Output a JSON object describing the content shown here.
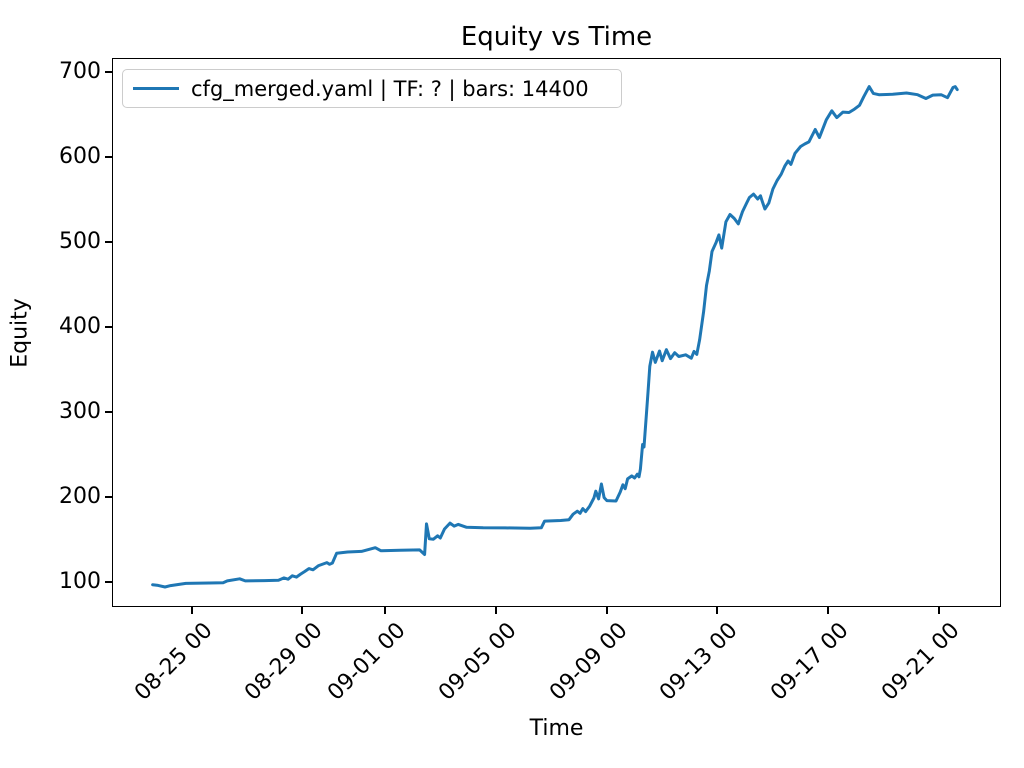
{
  "title": "Equity vs Time",
  "axes": {
    "xlabel": "Time",
    "ylabel": "Equity"
  },
  "legend": {
    "label": "cfg_merged.yaml | TF: ? | bars: 14400",
    "position": "upper left"
  },
  "colors": {
    "line": "#1f77b4",
    "legend_border": "#cccccc",
    "spine": "#000000",
    "text": "#000000",
    "background": "#ffffff"
  },
  "chart_data": {
    "type": "line",
    "title": "Equity vs Time",
    "xlabel": "Time",
    "ylabel": "Equity",
    "grid": false,
    "legend_position": "upper left",
    "x_unit": "days, offset from 08-23 00:00; tick labels shown as MM-DD HH",
    "xlim": [
      -0.88,
      31.25
    ],
    "ylim": [
      70.6,
      716.5
    ],
    "y_ticks": [
      100,
      200,
      300,
      400,
      500,
      600,
      700
    ],
    "x_ticks": [
      {
        "t": 2,
        "label": "08-25 00"
      },
      {
        "t": 6,
        "label": "08-29 00"
      },
      {
        "t": 9,
        "label": "09-01 00"
      },
      {
        "t": 13,
        "label": "09-05 00"
      },
      {
        "t": 17,
        "label": "09-09 00"
      },
      {
        "t": 21,
        "label": "09-13 00"
      },
      {
        "t": 25,
        "label": "09-17 00"
      },
      {
        "t": 29,
        "label": "09-21 00"
      }
    ],
    "series": [
      {
        "name": "cfg_merged.yaml | TF: ? | bars: 14400",
        "color": "#1f77b4",
        "points": [
          [
            0.55,
            98.0
          ],
          [
            0.75,
            97.2
          ],
          [
            1.0,
            95.3
          ],
          [
            1.2,
            97.0
          ],
          [
            1.75,
            99.5
          ],
          [
            2.6,
            100.0
          ],
          [
            3.1,
            100.3
          ],
          [
            3.25,
            102.5
          ],
          [
            3.7,
            105.0
          ],
          [
            3.9,
            102.5
          ],
          [
            4.6,
            102.8
          ],
          [
            5.1,
            103.2
          ],
          [
            5.3,
            106.0
          ],
          [
            5.45,
            104.5
          ],
          [
            5.6,
            108.5
          ],
          [
            5.75,
            107.0
          ],
          [
            5.9,
            110.5
          ],
          [
            6.05,
            113.5
          ],
          [
            6.2,
            117.0
          ],
          [
            6.35,
            115.5
          ],
          [
            6.55,
            120.5
          ],
          [
            6.85,
            124.0
          ],
          [
            6.95,
            122.0
          ],
          [
            7.05,
            123.5
          ],
          [
            7.2,
            135.0
          ],
          [
            7.6,
            136.5
          ],
          [
            8.1,
            137.2
          ],
          [
            8.6,
            141.5
          ],
          [
            8.8,
            138.0
          ],
          [
            9.5,
            138.5
          ],
          [
            10.2,
            139.0
          ],
          [
            10.38,
            133.5
          ],
          [
            10.45,
            169.5
          ],
          [
            10.55,
            152.0
          ],
          [
            10.7,
            151.5
          ],
          [
            10.85,
            155.5
          ],
          [
            10.95,
            153.0
          ],
          [
            11.1,
            163.5
          ],
          [
            11.3,
            170.5
          ],
          [
            11.45,
            167.0
          ],
          [
            11.6,
            169.0
          ],
          [
            11.9,
            165.5
          ],
          [
            12.5,
            165.0
          ],
          [
            13.3,
            164.8
          ],
          [
            14.2,
            164.5
          ],
          [
            14.6,
            165.0
          ],
          [
            14.72,
            172.8
          ],
          [
            15.3,
            173.5
          ],
          [
            15.6,
            174.5
          ],
          [
            15.75,
            181.0
          ],
          [
            15.9,
            184.5
          ],
          [
            16.0,
            182.0
          ],
          [
            16.1,
            187.5
          ],
          [
            16.2,
            184.0
          ],
          [
            16.35,
            190.5
          ],
          [
            16.5,
            200.0
          ],
          [
            16.57,
            208.0
          ],
          [
            16.67,
            199.0
          ],
          [
            16.77,
            216.5
          ],
          [
            16.87,
            200.5
          ],
          [
            16.97,
            197.0
          ],
          [
            17.3,
            196.5
          ],
          [
            17.45,
            207.0
          ],
          [
            17.55,
            215.5
          ],
          [
            17.63,
            211.0
          ],
          [
            17.72,
            222.5
          ],
          [
            17.87,
            226.0
          ],
          [
            17.97,
            223.5
          ],
          [
            18.07,
            228.0
          ],
          [
            18.13,
            225.0
          ],
          [
            18.18,
            234.0
          ],
          [
            18.26,
            263.0
          ],
          [
            18.31,
            260.0
          ],
          [
            18.4,
            300.0
          ],
          [
            18.46,
            326.0
          ],
          [
            18.52,
            355.0
          ],
          [
            18.62,
            371.5
          ],
          [
            18.72,
            359.5
          ],
          [
            18.87,
            373.0
          ],
          [
            18.97,
            361.5
          ],
          [
            19.12,
            374.5
          ],
          [
            19.27,
            364.0
          ],
          [
            19.42,
            371.0
          ],
          [
            19.57,
            366.5
          ],
          [
            19.82,
            368.5
          ],
          [
            20.02,
            364.5
          ],
          [
            20.12,
            372.5
          ],
          [
            20.22,
            369.0
          ],
          [
            20.32,
            386.0
          ],
          [
            20.47,
            420.0
          ],
          [
            20.57,
            450.0
          ],
          [
            20.67,
            467.0
          ],
          [
            20.77,
            490.0
          ],
          [
            20.92,
            501.0
          ],
          [
            21.02,
            509.5
          ],
          [
            21.12,
            494.0
          ],
          [
            21.27,
            525.0
          ],
          [
            21.42,
            533.5
          ],
          [
            21.57,
            529.0
          ],
          [
            21.72,
            522.5
          ],
          [
            21.87,
            537.0
          ],
          [
            22.02,
            547.0
          ],
          [
            22.12,
            553.5
          ],
          [
            22.27,
            557.5
          ],
          [
            22.42,
            551.8
          ],
          [
            22.52,
            555.5
          ],
          [
            22.58,
            549.5
          ],
          [
            22.68,
            540.0
          ],
          [
            22.82,
            547.0
          ],
          [
            22.97,
            563.5
          ],
          [
            23.12,
            573.5
          ],
          [
            23.27,
            581.0
          ],
          [
            23.4,
            590.5
          ],
          [
            23.52,
            596.5
          ],
          [
            23.62,
            592.5
          ],
          [
            23.77,
            605.5
          ],
          [
            23.97,
            613.5
          ],
          [
            24.12,
            616.5
          ],
          [
            24.27,
            619.0
          ],
          [
            24.5,
            633.5
          ],
          [
            24.65,
            624.0
          ],
          [
            24.9,
            645.0
          ],
          [
            25.1,
            655.5
          ],
          [
            25.28,
            647.5
          ],
          [
            25.5,
            654.0
          ],
          [
            25.72,
            653.5
          ],
          [
            25.92,
            657.5
          ],
          [
            26.1,
            662.0
          ],
          [
            26.25,
            672.0
          ],
          [
            26.45,
            684.0
          ],
          [
            26.6,
            676.0
          ],
          [
            26.8,
            674.5
          ],
          [
            27.3,
            675.0
          ],
          [
            27.8,
            676.5
          ],
          [
            28.2,
            674.5
          ],
          [
            28.5,
            670.0
          ],
          [
            28.75,
            674.0
          ],
          [
            29.05,
            674.5
          ],
          [
            29.28,
            671.0
          ],
          [
            29.48,
            683.0
          ],
          [
            29.56,
            684.0
          ],
          [
            29.63,
            680.5
          ]
        ]
      }
    ]
  }
}
